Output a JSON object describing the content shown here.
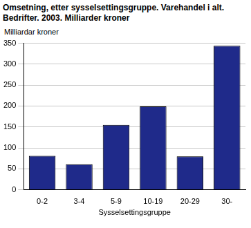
{
  "chart_data": {
    "type": "bar",
    "title": "Omsetning, etter sysselsettingsgruppe. Varehandel i alt. Bedrifter. 2003. Milliarder kroner",
    "y_label": "Milliardar kroner",
    "x_label": "Sysselsettingsgruppe",
    "categories": [
      "0-2",
      "3-4",
      "5-9",
      "10-19",
      "20-29",
      "30-"
    ],
    "values": [
      81,
      61,
      155,
      199,
      80,
      344
    ],
    "color": "#1f2a8a",
    "ylim": [
      0,
      350
    ],
    "yticks": [
      0,
      50,
      100,
      150,
      200,
      250,
      300,
      350
    ],
    "grid": true
  }
}
